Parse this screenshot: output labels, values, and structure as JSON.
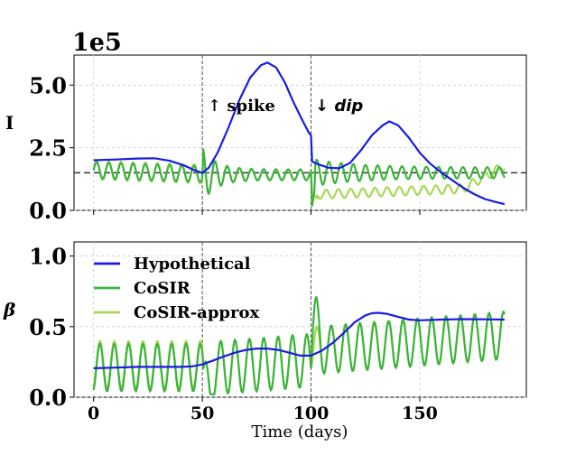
{
  "chart_data": [
    {
      "type": "line",
      "ylabel": "I",
      "offset_text": "1e5",
      "xlim": [
        -9,
        199
      ],
      "ylim": [
        0,
        6.2
      ],
      "yticks": [
        0.0,
        2.5,
        5.0
      ],
      "ytick_labels": [
        "0.0",
        "2.5",
        "5.0"
      ],
      "xticks": [
        0,
        50,
        100,
        150
      ],
      "grid": true,
      "hline": 1.5,
      "vlines": [
        50,
        100
      ],
      "annotations": [
        {
          "text": "↑ spike",
          "x": 52,
          "y": 4.1,
          "style": "normal"
        },
        {
          "text": "↓ dip",
          "x": 101.5,
          "y": 4.1,
          "style": "italic"
        }
      ],
      "series": [
        {
          "name": "Hypothetical",
          "color": "#1a1ae6",
          "points": [
            [
              0,
              2.0
            ],
            [
              10,
              2.03
            ],
            [
              20,
              2.07
            ],
            [
              28,
              2.08
            ],
            [
              35,
              1.98
            ],
            [
              42,
              1.78
            ],
            [
              47,
              1.58
            ],
            [
              50,
              1.5
            ],
            [
              53,
              1.7
            ],
            [
              57,
              2.3
            ],
            [
              62,
              3.3
            ],
            [
              67,
              4.4
            ],
            [
              72,
              5.3
            ],
            [
              77,
              5.8
            ],
            [
              80,
              5.9
            ],
            [
              84,
              5.7
            ],
            [
              88,
              5.1
            ],
            [
              92,
              4.3
            ],
            [
              96,
              3.6
            ],
            [
              99,
              3.1
            ],
            [
              100,
              3.0
            ],
            [
              100.5,
              1.95
            ],
            [
              103,
              1.85
            ],
            [
              108,
              1.7
            ],
            [
              113,
              1.68
            ],
            [
              118,
              1.9
            ],
            [
              123,
              2.4
            ],
            [
              128,
              3.0
            ],
            [
              133,
              3.4
            ],
            [
              136,
              3.55
            ],
            [
              140,
              3.4
            ],
            [
              145,
              2.9
            ],
            [
              150,
              2.3
            ],
            [
              155,
              1.85
            ],
            [
              160,
              1.5
            ],
            [
              165,
              1.2
            ],
            [
              170,
              0.9
            ],
            [
              175,
              0.65
            ],
            [
              180,
              0.45
            ],
            [
              185,
              0.33
            ],
            [
              189,
              0.25
            ]
          ]
        },
        {
          "name": "CoSIR",
          "color": "#3cb43c",
          "points": []
        },
        {
          "name": "CoSIR-approx",
          "color": "#a6d854",
          "points": []
        }
      ]
    },
    {
      "type": "line",
      "ylabel": "β",
      "xlabel": "Time (days)",
      "xlim": [
        -9,
        199
      ],
      "ylim": [
        0,
        1.1
      ],
      "yticks": [
        0.0,
        0.5,
        1.0
      ],
      "ytick_labels": [
        "0.0",
        "0.5",
        "1.0"
      ],
      "xticks": [
        0,
        50,
        100,
        150
      ],
      "xtick_labels": [
        "0",
        "50",
        "100",
        "150"
      ],
      "grid": true,
      "vlines": [
        50,
        100
      ],
      "legend": {
        "position": "upper-left",
        "entries": [
          "Hypothetical",
          "CoSIR",
          "CoSIR-approx"
        ]
      },
      "series": [
        {
          "name": "Hypothetical",
          "color": "#1a1ae6",
          "points": [
            [
              0,
              0.205
            ],
            [
              10,
              0.21
            ],
            [
              20,
              0.215
            ],
            [
              30,
              0.215
            ],
            [
              40,
              0.215
            ],
            [
              45,
              0.218
            ],
            [
              50,
              0.232
            ],
            [
              55,
              0.26
            ],
            [
              60,
              0.29
            ],
            [
              65,
              0.315
            ],
            [
              70,
              0.335
            ],
            [
              75,
              0.345
            ],
            [
              80,
              0.345
            ],
            [
              85,
              0.335
            ],
            [
              90,
              0.315
            ],
            [
              95,
              0.295
            ],
            [
              100,
              0.295
            ],
            [
              105,
              0.33
            ],
            [
              110,
              0.385
            ],
            [
              115,
              0.455
            ],
            [
              120,
              0.53
            ],
            [
              125,
              0.58
            ],
            [
              128,
              0.595
            ],
            [
              131,
              0.598
            ],
            [
              135,
              0.59
            ],
            [
              140,
              0.57
            ],
            [
              145,
              0.55
            ],
            [
              150,
              0.545
            ],
            [
              160,
              0.55
            ],
            [
              170,
              0.553
            ],
            [
              180,
              0.552
            ],
            [
              189,
              0.55
            ]
          ]
        },
        {
          "name": "CoSIR",
          "color": "#3cb43c",
          "points": []
        },
        {
          "name": "CoSIR-approx",
          "color": "#a6d854",
          "points": []
        }
      ]
    }
  ]
}
